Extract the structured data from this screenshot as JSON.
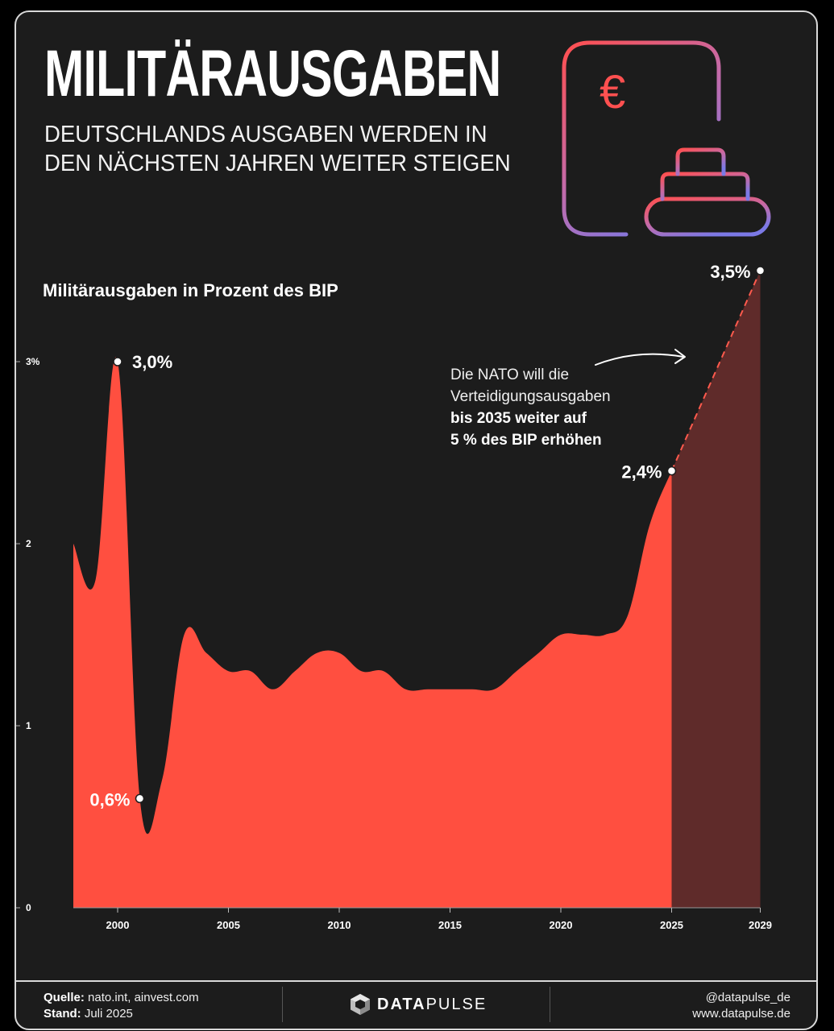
{
  "header": {
    "title": "MILITÄRAUSGABEN",
    "subtitle_lines": [
      "DEUTSCHLANDS AUSGABEN WERDEN IN",
      "DEN NÄCHSTEN JAHREN WEITER STEIGEN"
    ],
    "icon": "euro-document-tank-icon",
    "icon_symbol": "€"
  },
  "chart_data": {
    "type": "area",
    "title": "Militärausgaben in Prozent des BIP",
    "xlabel": "",
    "ylabel": "",
    "xlim": [
      1998,
      2029
    ],
    "ylim": [
      0,
      3
    ],
    "x_ticks": [
      "2000",
      "2005",
      "2010",
      "2015",
      "2020",
      "2025",
      "2029"
    ],
    "y_ticks": [
      "0",
      "1",
      "2",
      "3%"
    ],
    "grid": false,
    "series": [
      {
        "type": "area",
        "color": "#ff4f40",
        "x": [
          1998,
          1999,
          2000,
          2001,
          2002,
          2003,
          2004,
          2005,
          2006,
          2007,
          2008,
          2009,
          2010,
          2011,
          2012,
          2013,
          2014,
          2015,
          2016,
          2017,
          2018,
          2019,
          2020,
          2021,
          2022,
          2023,
          2024,
          2025
        ],
        "y": [
          2.0,
          1.8,
          3.0,
          0.6,
          0.7,
          1.5,
          1.4,
          1.3,
          1.3,
          1.2,
          1.3,
          1.4,
          1.4,
          1.3,
          1.3,
          1.2,
          1.2,
          1.2,
          1.2,
          1.2,
          1.3,
          1.4,
          1.5,
          1.5,
          1.5,
          1.6,
          2.1,
          2.4
        ]
      },
      {
        "type": "area-projection",
        "color": "#5f2b2a",
        "line_color": "#ff5a4d",
        "dashed": true,
        "x": [
          2025,
          2029
        ],
        "y": [
          2.4,
          3.5
        ]
      }
    ],
    "annotations": [
      {
        "x": 2000,
        "y": 3.0,
        "label": "3,0%"
      },
      {
        "x": 2001,
        "y": 0.6,
        "label": "0,6%"
      },
      {
        "x": 2025,
        "y": 2.4,
        "label": "2,4%"
      },
      {
        "x": 2029,
        "y": 3.5,
        "label": "3,5%"
      }
    ],
    "note": {
      "line1": "Die NATO will die",
      "line2": "Verteidigungsausgaben",
      "line3": "bis 2035 weiter auf",
      "line4": "5 % des BIP erhöhen"
    }
  },
  "colors": {
    "background": "#1c1c1c",
    "area": "#ff4f40",
    "projection": "#5f2b2a",
    "icon_gradient_start": "#ff4f4f",
    "icon_gradient_end": "#7b79e6"
  },
  "footer": {
    "source_label": "Quelle:",
    "source_value": "nato.int, ainvest.com",
    "date_label": "Stand:",
    "date_value": "Juli 2025",
    "brand_icon": "datapulse-cube-icon",
    "brand_data": "DATA",
    "brand_pulse": "PULSE",
    "handle": "@datapulse_de",
    "website": "www.datapulse.de"
  }
}
